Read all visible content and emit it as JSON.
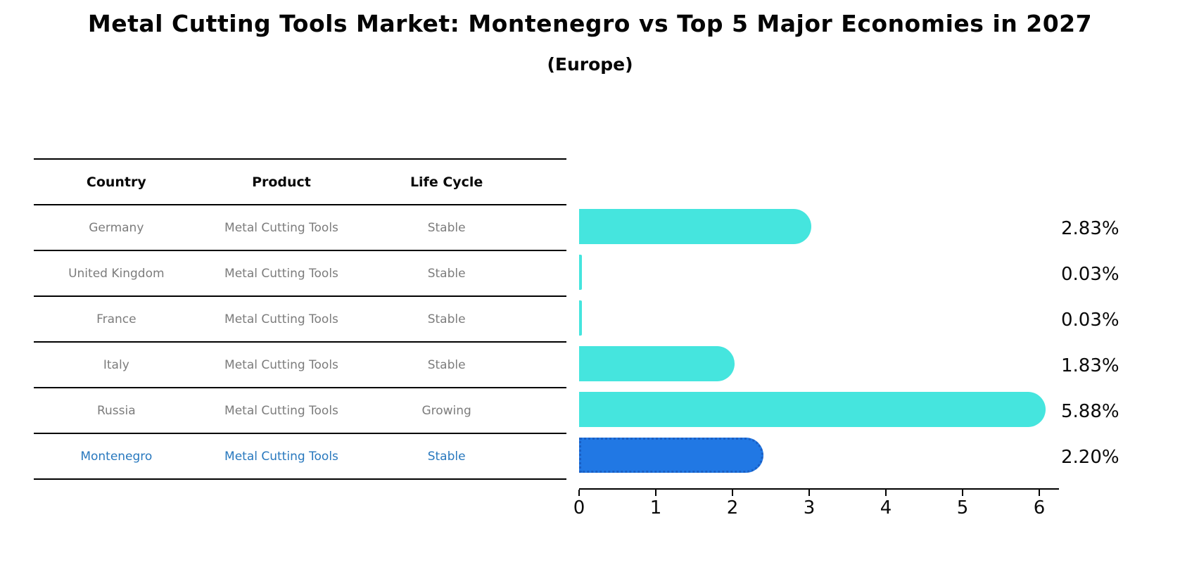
{
  "title": "Metal Cutting Tools Market: Montenegro vs Top 5 Major Economies in 2027",
  "subtitle": "(Europe)",
  "colors": {
    "bar_default": "#45e5de",
    "bar_highlight": "#2178e4",
    "bar_highlight_border": "#1a5fc4",
    "table_text": "#7c7c7c",
    "highlight_text": "#2878be",
    "axis_and_labels": "#0a0a0a"
  },
  "table": {
    "headers": [
      "Country",
      "Product",
      "Life Cycle"
    ],
    "rows": [
      {
        "country": "Germany",
        "product": "Metal Cutting Tools",
        "life_cycle": "Stable",
        "highlight": false
      },
      {
        "country": "United Kingdom",
        "product": "Metal Cutting Tools",
        "life_cycle": "Stable",
        "highlight": false
      },
      {
        "country": "France",
        "product": "Metal Cutting Tools",
        "life_cycle": "Stable",
        "highlight": false
      },
      {
        "country": "Italy",
        "product": "Metal Cutting Tools",
        "life_cycle": "Stable",
        "highlight": false
      },
      {
        "country": "Russia",
        "product": "Metal Cutting Tools",
        "life_cycle": "Growing",
        "highlight": false
      },
      {
        "country": "Montenegro",
        "product": "Metal Cutting Tools",
        "life_cycle": "Stable",
        "highlight": true
      }
    ]
  },
  "chart_data": {
    "type": "bar",
    "orientation": "horizontal",
    "title": "Metal Cutting Tools Market: Montenegro vs Top 5 Major Economies in 2027 (Europe)",
    "categories": [
      "Germany",
      "United Kingdom",
      "France",
      "Italy",
      "Russia",
      "Montenegro"
    ],
    "values": [
      2.83,
      0.03,
      0.03,
      1.83,
      5.88,
      2.2
    ],
    "value_labels": [
      "2.83%",
      "0.03%",
      "0.03%",
      "1.83%",
      "5.88%",
      "2.20%"
    ],
    "highlight_index": 5,
    "xlim": [
      0,
      6.26
    ],
    "xticks": [
      "0",
      "1",
      "2",
      "3",
      "4",
      "5",
      "6"
    ],
    "grid": false,
    "legend": false
  }
}
